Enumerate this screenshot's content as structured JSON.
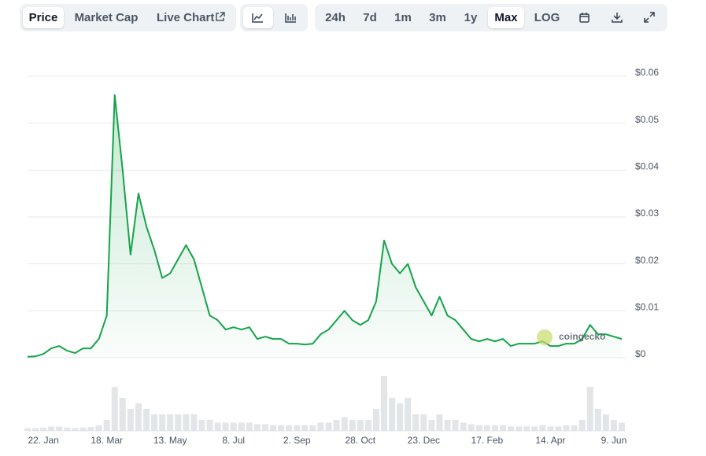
{
  "toolbar": {
    "views": [
      "Price",
      "Market Cap",
      "Live Chart"
    ],
    "ranges": [
      "24h",
      "7d",
      "1m",
      "3m",
      "1y",
      "Max",
      "LOG"
    ],
    "selected_view": "Price",
    "selected_range": "Max"
  },
  "chart_data": {
    "type": "line",
    "watermark": "coingecko",
    "categories": [
      null,
      null,
      "22. Jan",
      null,
      null,
      null,
      null,
      null,
      null,
      null,
      "18. Mar",
      null,
      null,
      null,
      null,
      null,
      null,
      null,
      "13. May",
      null,
      null,
      null,
      null,
      null,
      null,
      null,
      "8. Jul",
      null,
      null,
      null,
      null,
      null,
      null,
      null,
      "2. Sep",
      null,
      null,
      null,
      null,
      null,
      null,
      null,
      "28. Oct",
      null,
      null,
      null,
      null,
      null,
      null,
      null,
      "23. Dec",
      null,
      null,
      null,
      null,
      null,
      null,
      null,
      "17. Feb",
      null,
      null,
      null,
      null,
      null,
      null,
      null,
      "14. Apr",
      null,
      null,
      null,
      null,
      null,
      null,
      null,
      "9. Jun",
      null
    ],
    "series": [
      {
        "color": "#16a34a",
        "values": [
          0.0002,
          0.0003,
          0.0008,
          0.002,
          0.0025,
          0.0015,
          0.001,
          0.002,
          0.002,
          0.004,
          0.009,
          0.056,
          0.04,
          0.022,
          0.035,
          0.028,
          0.023,
          0.017,
          0.018,
          0.021,
          0.024,
          0.021,
          0.015,
          0.009,
          0.008,
          0.006,
          0.0065,
          0.006,
          0.0065,
          0.004,
          0.0045,
          0.004,
          0.004,
          0.003,
          0.003,
          0.0028,
          0.003,
          0.005,
          0.006,
          0.008,
          0.01,
          0.008,
          0.007,
          0.008,
          0.012,
          0.025,
          0.02,
          0.018,
          0.02,
          0.015,
          0.012,
          0.009,
          0.013,
          0.009,
          0.008,
          0.006,
          0.004,
          0.0035,
          0.004,
          0.0035,
          0.004,
          0.0025,
          0.003,
          0.003,
          0.003,
          0.0035,
          0.0025,
          0.0025,
          0.003,
          0.003,
          0.004,
          0.007,
          0.005,
          0.005,
          0.0045,
          0.004
        ]
      }
    ],
    "volume": [
      0.5,
      0.5,
      0.6,
      0.8,
      0.8,
      0.6,
      0.5,
      0.6,
      0.7,
      1,
      2,
      8,
      6,
      4,
      5,
      4,
      3,
      3,
      3,
      3,
      3,
      3,
      2,
      2,
      1.5,
      1.5,
      1.5,
      1.5,
      1.5,
      1.2,
      1.2,
      1,
      1,
      1,
      1,
      1,
      1,
      1.5,
      1.5,
      2,
      2.5,
      2,
      2,
      2,
      4,
      10,
      6,
      5,
      6,
      3,
      3,
      2,
      3,
      2,
      2,
      1.5,
      1.2,
      1,
      1,
      1,
      1,
      0.8,
      0.8,
      0.8,
      0.8,
      1,
      0.8,
      0.8,
      1,
      1,
      2,
      8,
      4,
      3,
      2,
      1.5
    ],
    "ylim": [
      0,
      0.06
    ],
    "yticks": [
      {
        "value": 0,
        "label": "$0"
      },
      {
        "value": 0.01,
        "label": "$0.01"
      },
      {
        "value": 0.02,
        "label": "$0.02"
      },
      {
        "value": 0.03,
        "label": "$0.03"
      },
      {
        "value": 0.04,
        "label": "$0.04"
      },
      {
        "value": 0.05,
        "label": "$0.05"
      },
      {
        "value": 0.06,
        "label": "$0.06"
      }
    ],
    "grid": true
  }
}
